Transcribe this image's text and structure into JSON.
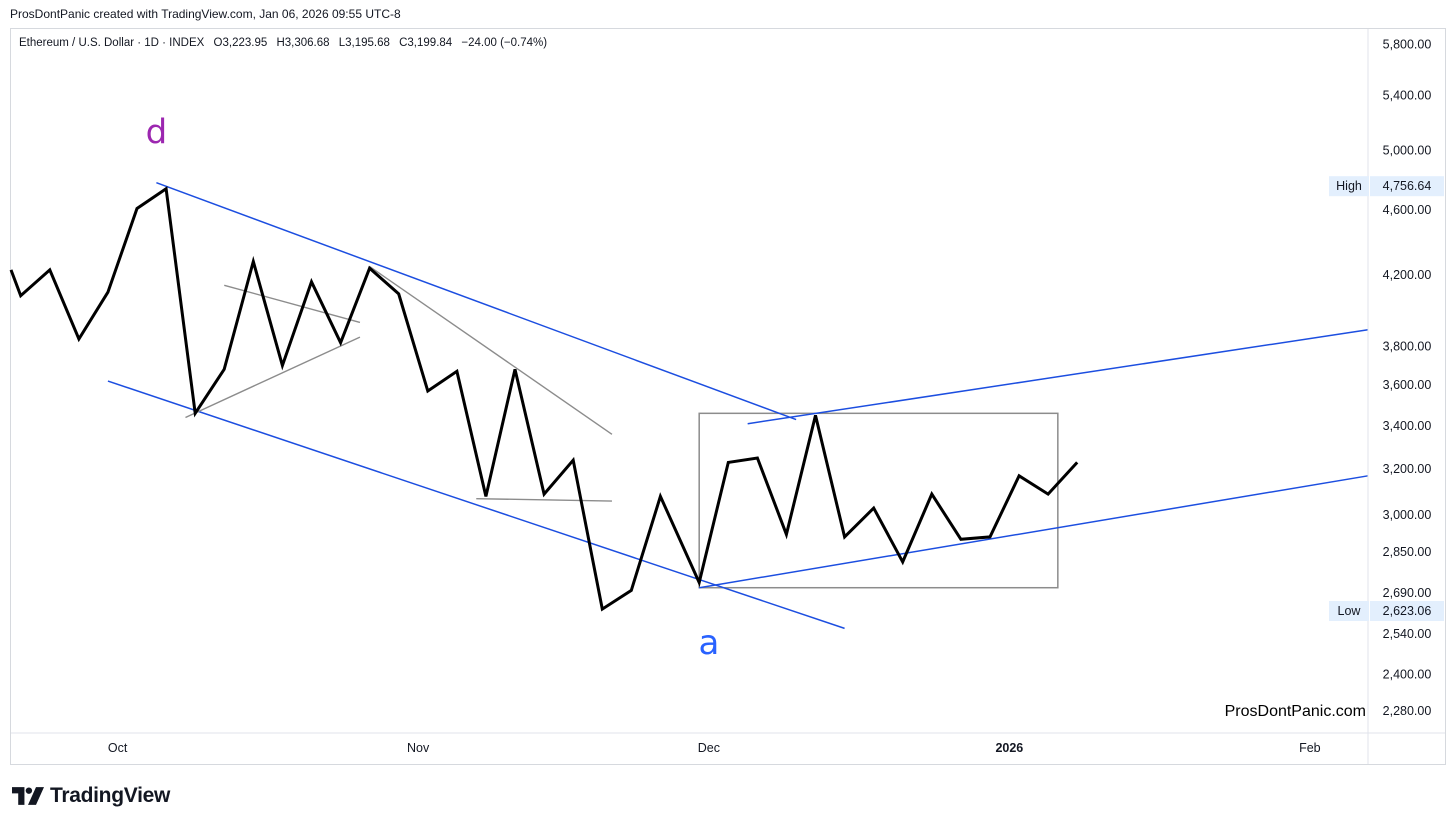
{
  "caption": "ProsDontPanic created with TradingView.com, Jan 06, 2026 09:55 UTC-8",
  "legend": {
    "symbol": "Ethereum / U.S. Dollar · 1D · INDEX",
    "open": "O3,223.95",
    "high": "H3,306.68",
    "low": "L3,195.68",
    "close": "C3,199.84",
    "change": "−24.00 (−0.74%)"
  },
  "watermark": "ProsDontPanic.com",
  "brand": "TradingView",
  "colors": {
    "price": "#000000",
    "channel": "#1c4ee0",
    "helper": "#8c8c8c",
    "wave_d": "#9c27b0",
    "wave_a": "#2962ff",
    "label_bg": "#e3effd"
  },
  "chart_data": {
    "type": "line",
    "title": "",
    "xlabel": "",
    "ylabel": "",
    "scale": "log",
    "ylim": [
      2200,
      6000
    ],
    "y_ticks": [
      "5,800.00",
      "5,400.00",
      "5,000.00",
      "4,600.00",
      "4,200.00",
      "3,800.00",
      "3,600.00",
      "3,400.00",
      "3,200.00",
      "3,000.00",
      "2,850.00",
      "2,690.00",
      "2,540.00",
      "2,400.00",
      "2,280.00"
    ],
    "x_ticks": [
      "Oct",
      "Nov",
      "Dec",
      "2026",
      "Feb"
    ],
    "x_tick_dates": [
      "2025-10-01",
      "2025-11-01",
      "2025-12-01",
      "2026-01-01",
      "2026-02-01"
    ],
    "x_range": [
      "2025-09-20",
      "2026-02-07"
    ],
    "series": [
      {
        "points": [
          [
            "2025-09-20",
            4230
          ],
          [
            "2025-09-21",
            4080
          ],
          [
            "2025-09-24",
            4230
          ],
          [
            "2025-09-27",
            3840
          ],
          [
            "2025-09-30",
            4100
          ],
          [
            "2025-10-03",
            4610
          ],
          [
            "2025-10-06",
            4740
          ],
          [
            "2025-10-09",
            3460
          ],
          [
            "2025-10-12",
            3680
          ],
          [
            "2025-10-15",
            4280
          ],
          [
            "2025-10-18",
            3700
          ],
          [
            "2025-10-21",
            4160
          ],
          [
            "2025-10-24",
            3820
          ],
          [
            "2025-10-27",
            4240
          ],
          [
            "2025-10-30",
            4090
          ],
          [
            "2025-11-02",
            3570
          ],
          [
            "2025-11-05",
            3670
          ],
          [
            "2025-11-08",
            3080
          ],
          [
            "2025-11-11",
            3680
          ],
          [
            "2025-11-14",
            3090
          ],
          [
            "2025-11-17",
            3240
          ],
          [
            "2025-11-20",
            2630
          ],
          [
            "2025-11-23",
            2700
          ],
          [
            "2025-11-26",
            3080
          ],
          [
            "2025-11-30",
            2730
          ],
          [
            "2025-12-03",
            3230
          ],
          [
            "2025-12-06",
            3250
          ],
          [
            "2025-12-09",
            2920
          ],
          [
            "2025-12-12",
            3450
          ],
          [
            "2025-12-15",
            2910
          ],
          [
            "2025-12-18",
            3030
          ],
          [
            "2025-12-21",
            2810
          ],
          [
            "2025-12-24",
            3090
          ],
          [
            "2025-12-27",
            2900
          ],
          [
            "2025-12-30",
            2910
          ],
          [
            "2026-01-02",
            3170
          ],
          [
            "2026-01-05",
            3090
          ],
          [
            "2026-01-08",
            3230
          ]
        ]
      }
    ],
    "price_labels": [
      {
        "label": "High",
        "value": "4,756.64",
        "price": 4756.64
      },
      {
        "label": "Low",
        "value": "2,623.06",
        "price": 2623.06
      }
    ],
    "annotations": [
      {
        "text": "d",
        "date": "2025-10-05",
        "price": 5050
      },
      {
        "text": "a",
        "date": "2025-12-01",
        "price": 2470
      }
    ],
    "trendlines": [
      {
        "style": "channel",
        "from": [
          "2025-10-05",
          4780
        ],
        "to": [
          "2025-12-10",
          3430
        ]
      },
      {
        "style": "channel",
        "from": [
          "2025-09-30",
          3620
        ],
        "to": [
          "2025-12-15",
          2560
        ]
      },
      {
        "style": "channel",
        "from": [
          "2025-12-05",
          3410
        ],
        "to": [
          "2026-02-07",
          3890
        ]
      },
      {
        "style": "channel",
        "from": [
          "2025-11-30",
          2710
        ],
        "to": [
          "2026-02-07",
          3170
        ]
      },
      {
        "style": "helper",
        "from": [
          "2025-10-08",
          3440
        ],
        "to": [
          "2025-10-26",
          3850
        ]
      },
      {
        "style": "helper",
        "from": [
          "2025-10-12",
          4140
        ],
        "to": [
          "2025-10-26",
          3930
        ]
      },
      {
        "style": "helper",
        "from": [
          "2025-10-27",
          4250
        ],
        "to": [
          "2025-11-21",
          3360
        ]
      },
      {
        "style": "helper",
        "from": [
          "2025-11-07",
          3070
        ],
        "to": [
          "2025-11-21",
          3060
        ]
      }
    ],
    "boxes": [
      {
        "from": [
          "2025-11-30",
          3460
        ],
        "to": [
          "2026-01-06",
          2710
        ]
      }
    ]
  }
}
